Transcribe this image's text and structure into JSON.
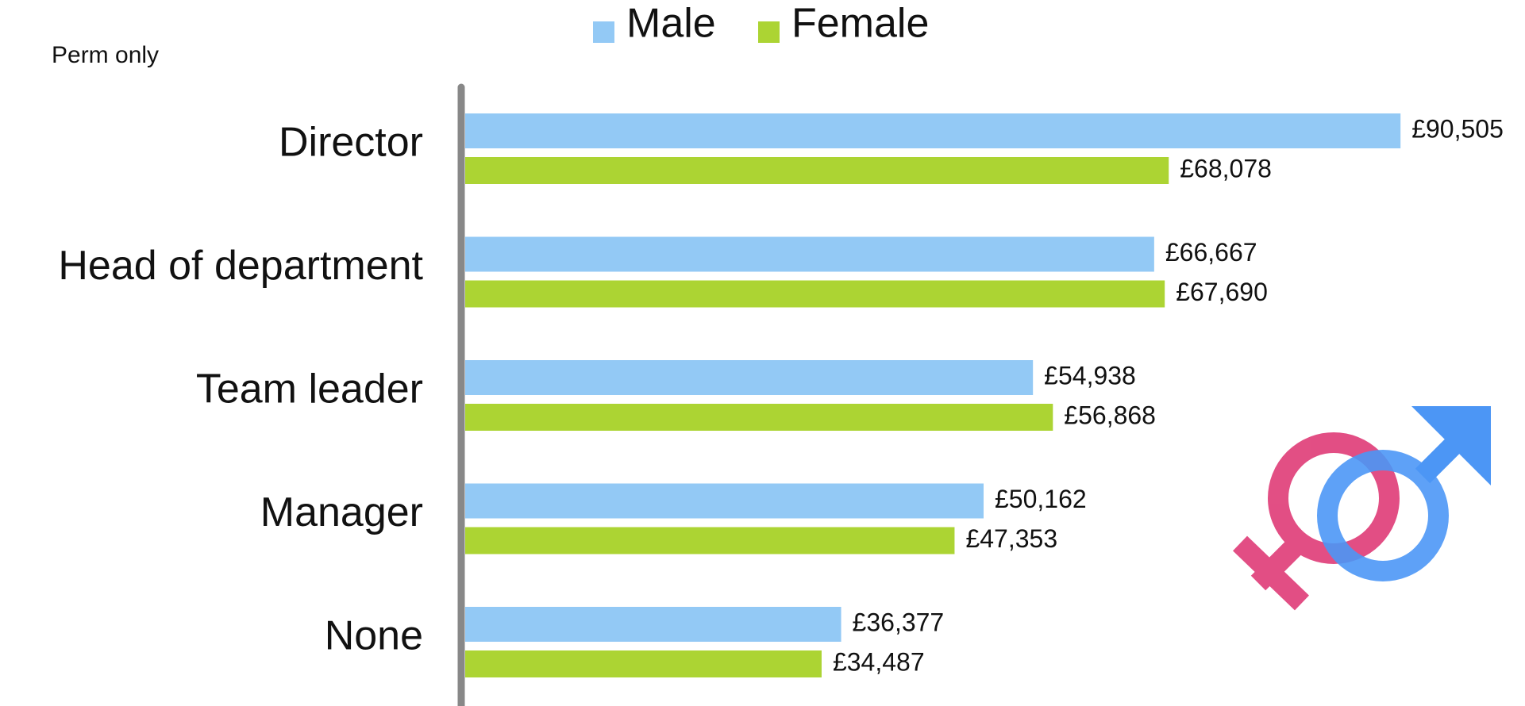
{
  "chart_data": {
    "type": "bar",
    "orientation": "horizontal",
    "subtitle": "Perm only",
    "categories": [
      "Director",
      "Head of department",
      "Team leader",
      "Manager",
      "None"
    ],
    "series": [
      {
        "name": "Male",
        "color": "#93c9f5",
        "values": [
          90505,
          66667,
          54938,
          50162,
          36377
        ],
        "value_labels": [
          "£90,505",
          "£66,667",
          "£54,938",
          "£50,162",
          "£36,377"
        ]
      },
      {
        "name": "Female",
        "color": "#acd433",
        "values": [
          68078,
          67690,
          56868,
          47353,
          34487
        ],
        "value_labels": [
          "£68,078",
          "£67,690",
          "£56,868",
          "£47,353",
          "£34,487"
        ]
      }
    ]
  }
}
